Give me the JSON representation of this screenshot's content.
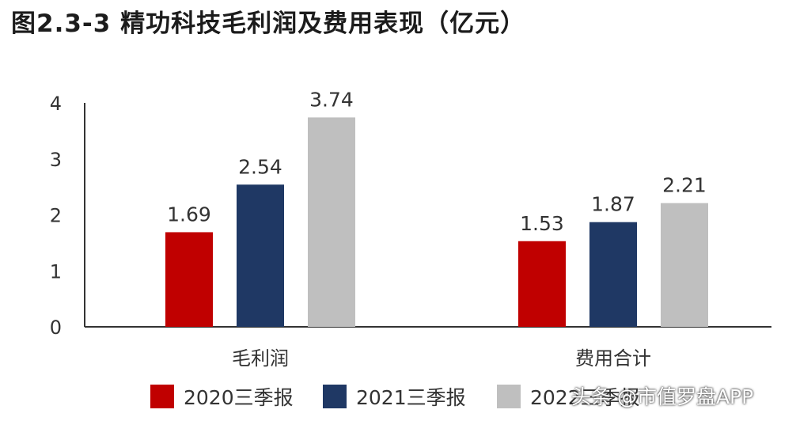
{
  "title": "图2.3-3 精功科技毛利润及费用表现（亿元）",
  "watermark": "头条 @市值罗盘APP",
  "colors": {
    "s2020": "#c00000",
    "s2021": "#1f3864",
    "s2022": "#bfbfbf",
    "axis": "#333333",
    "text": "#333333"
  },
  "chart_data": {
    "type": "bar",
    "categories": [
      "毛利润",
      "费用合计"
    ],
    "series": [
      {
        "name": "2020三季报",
        "values": [
          1.69,
          1.53
        ]
      },
      {
        "name": "2021三季报",
        "values": [
          2.54,
          1.87
        ]
      },
      {
        "name": "2022三季报",
        "values": [
          3.74,
          2.21
        ]
      }
    ],
    "data_labels": [
      [
        "1.69",
        "1.53"
      ],
      [
        "2.54",
        "1.87"
      ],
      [
        "3.74",
        "2.21"
      ]
    ],
    "yticks": [
      "0",
      "1",
      "2",
      "3",
      "4"
    ],
    "ylim": [
      0,
      4
    ],
    "grid": false,
    "legend": "bottom"
  }
}
